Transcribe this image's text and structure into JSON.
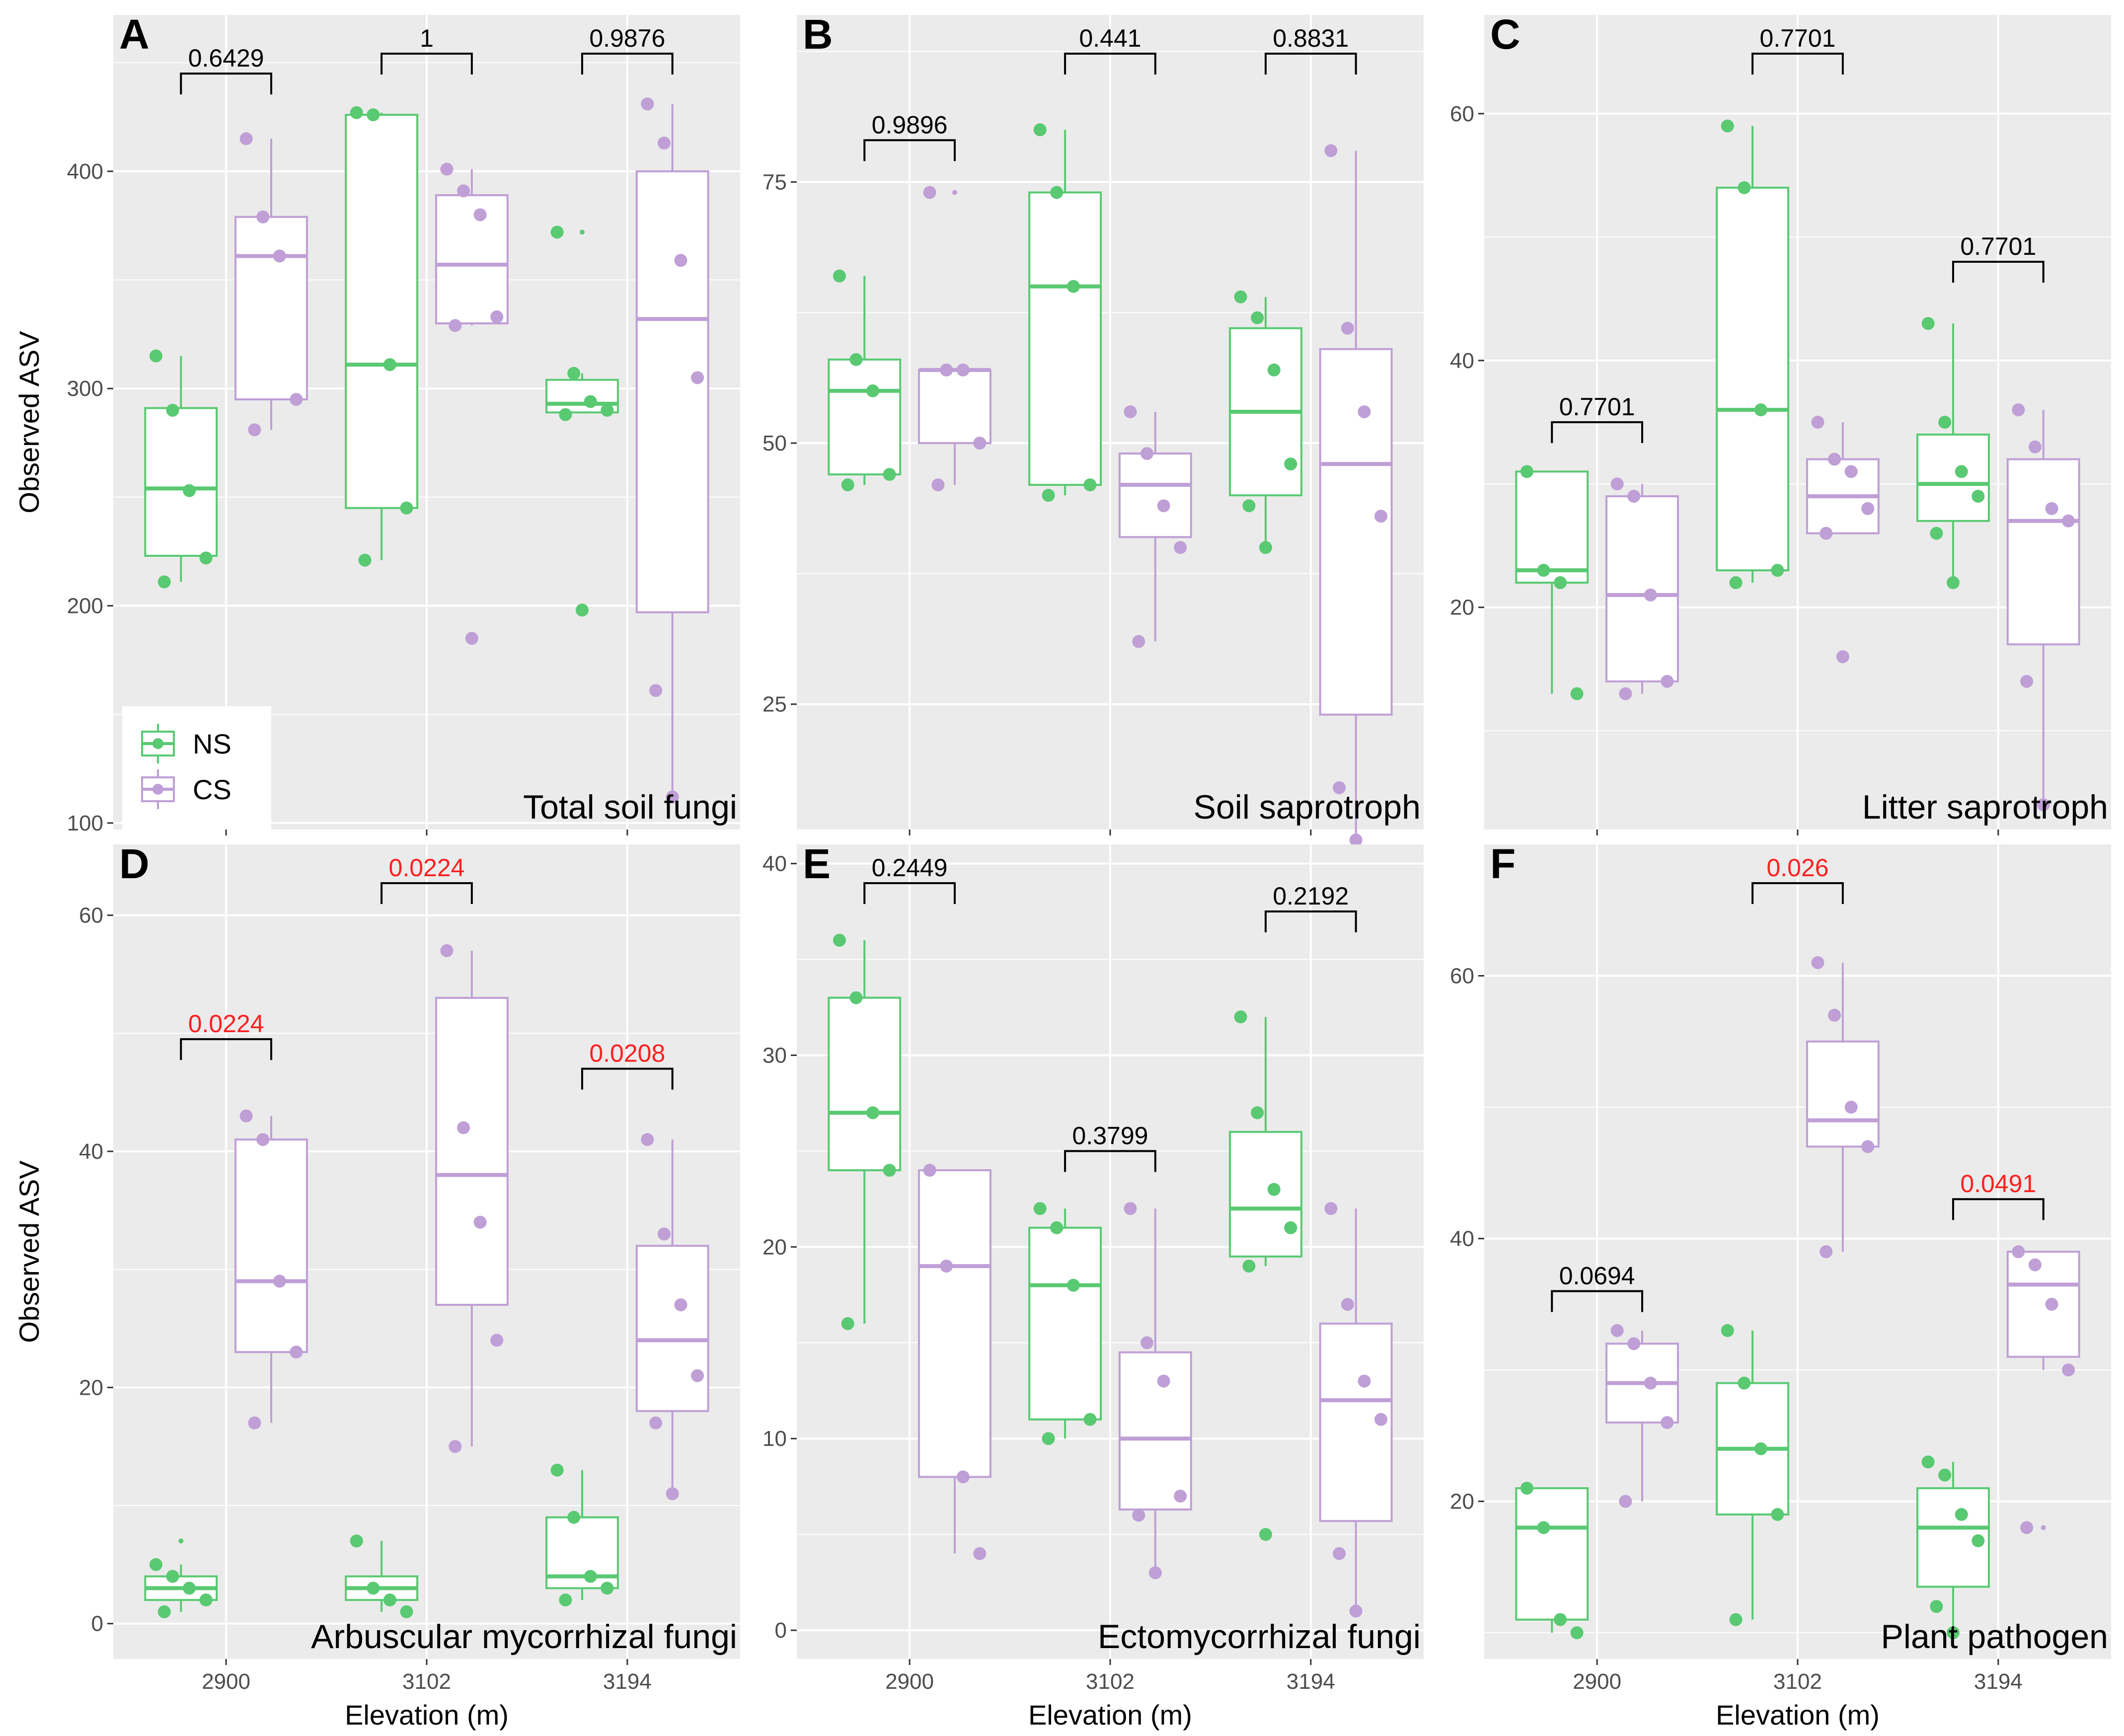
{
  "colors": {
    "NS": "#59C972",
    "CS": "#BF9FD6",
    "sig": "#FF2020",
    "nonsig": "#000000",
    "panel_bg": "#EBEBEB",
    "grid": "#FFFFFF"
  },
  "legend": {
    "items": [
      {
        "group": "NS",
        "label": "NS"
      },
      {
        "group": "CS",
        "label": "CS"
      }
    ],
    "placement": "bottom-left of panel A"
  },
  "chart_data": [
    {
      "type": "box",
      "letter": "A",
      "title": "Total soil fungi",
      "xlabel": "",
      "ylabel": "Observed ASV",
      "ylim": [
        97,
        472
      ],
      "yticks": [
        100,
        200,
        300,
        400
      ],
      "categories": [
        "2900",
        "3102",
        "3194"
      ],
      "show_xticklabels": false,
      "series": [
        {
          "name": "NS",
          "boxes": [
            {
              "min": 211,
              "q1": 223,
              "median": 254,
              "q3": 291,
              "max": 315,
              "points": [
                315,
                290,
                253,
                222,
                211
              ]
            },
            {
              "min": 221,
              "q1": 245,
              "median": 311,
              "q3": 426,
              "max": 427,
              "points": [
                427,
                426,
                311,
                245,
                221
              ]
            },
            {
              "min": 289,
              "q1": 289,
              "median": 293,
              "q3": 304,
              "max": 307,
              "outliers": [
                372,
                198
              ],
              "points": [
                372,
                307,
                294,
                290,
                288,
                198
              ]
            }
          ]
        },
        {
          "name": "CS",
          "boxes": [
            {
              "min": 281,
              "q1": 295,
              "median": 361,
              "q3": 379,
              "max": 415,
              "points": [
                415,
                379,
                361,
                295,
                281
              ]
            },
            {
              "min": 329,
              "q1": 330,
              "median": 357,
              "q3": 389,
              "max": 401,
              "outliers": [
                185
              ],
              "points": [
                401,
                391,
                380,
                333,
                329,
                185
              ]
            },
            {
              "min": 112,
              "q1": 197,
              "median": 332,
              "q3": 400,
              "max": 431,
              "points": [
                431,
                413,
                359,
                305,
                161,
                112
              ]
            }
          ]
        }
      ],
      "comparisons": [
        {
          "category": "2900",
          "label": "0.6429",
          "significant": false,
          "y": 445
        },
        {
          "category": "3102",
          "label": "1",
          "significant": false,
          "y": 460
        },
        {
          "category": "3194",
          "label": "0.9876",
          "significant": false,
          "y": 479
        }
      ]
    },
    {
      "type": "box",
      "letter": "B",
      "title": "Soil saprotroph",
      "xlabel": "",
      "ylabel": "",
      "ylim": [
        13,
        91
      ],
      "yticks": [
        25,
        50,
        75
      ],
      "categories": [
        "2900",
        "3102",
        "3194"
      ],
      "show_xticklabels": false,
      "series": [
        {
          "name": "NS",
          "boxes": [
            {
              "min": 46,
              "q1": 47,
              "median": 55,
              "q3": 58,
              "max": 66,
              "points": [
                66,
                58,
                55,
                47,
                46
              ]
            },
            {
              "min": 45,
              "q1": 46,
              "median": 65,
              "q3": 74,
              "max": 80,
              "points": [
                80,
                74,
                65,
                46,
                45
              ]
            },
            {
              "min": 40,
              "q1": 45,
              "median": 53,
              "q3": 61,
              "max": 64,
              "points": [
                64,
                62,
                57,
                48,
                44,
                40
              ]
            }
          ]
        },
        {
          "name": "CS",
          "boxes": [
            {
              "min": 46,
              "q1": 50,
              "median": 57,
              "q3": 57,
              "max": 57,
              "outliers": [
                74
              ],
              "points": [
                74,
                57,
                57,
                50,
                46
              ]
            },
            {
              "min": 31,
              "q1": 41,
              "median": 46,
              "q3": 49,
              "max": 53,
              "points": [
                53,
                49,
                44,
                40,
                31
              ]
            },
            {
              "min": 12,
              "q1": 24,
              "median": 48,
              "q3": 59,
              "max": 78,
              "points": [
                78,
                61,
                53,
                43,
                17,
                12
              ]
            }
          ]
        }
      ],
      "comparisons": [
        {
          "category": "2900",
          "label": "0.9896",
          "significant": false,
          "y": 79
        },
        {
          "category": "3102",
          "label": "0.441",
          "significant": false,
          "y": 88
        },
        {
          "category": "3194",
          "label": "0.8831",
          "significant": false,
          "y": 88
        }
      ]
    },
    {
      "type": "box",
      "letter": "C",
      "title": "Litter saprotroph",
      "xlabel": "",
      "ylabel": "",
      "ylim": [
        2,
        68
      ],
      "yticks": [
        20,
        40,
        60
      ],
      "categories": [
        "2900",
        "3102",
        "3194"
      ],
      "show_xticklabels": false,
      "series": [
        {
          "name": "NS",
          "boxes": [
            {
              "min": 13,
              "q1": 22,
              "median": 23,
              "q3": 31,
              "max": 31,
              "points": [
                31,
                23,
                22,
                13
              ]
            },
            {
              "min": 22,
              "q1": 23,
              "median": 36,
              "q3": 54,
              "max": 59,
              "points": [
                59,
                54,
                36,
                23,
                22
              ]
            },
            {
              "min": 22,
              "q1": 27,
              "median": 30,
              "q3": 34,
              "max": 43,
              "points": [
                43,
                35,
                31,
                29,
                26,
                22
              ]
            }
          ]
        },
        {
          "name": "CS",
          "boxes": [
            {
              "min": 13,
              "q1": 14,
              "median": 21,
              "q3": 29,
              "max": 30,
              "points": [
                30,
                29,
                21,
                14,
                13
              ]
            },
            {
              "min": 26,
              "q1": 26,
              "median": 29,
              "q3": 32,
              "max": 35,
              "outliers": [
                16
              ],
              "points": [
                35,
                32,
                31,
                28,
                26,
                16
              ]
            },
            {
              "min": 4,
              "q1": 17,
              "median": 27,
              "q3": 32,
              "max": 36,
              "points": [
                36,
                33,
                28,
                27,
                14,
                4
              ]
            }
          ]
        }
      ],
      "comparisons": [
        {
          "category": "2900",
          "label": "0.7701",
          "significant": false,
          "y": 35
        },
        {
          "category": "3102",
          "label": "0.7701",
          "significant": false,
          "y": 69
        },
        {
          "category": "3194",
          "label": "0.7701",
          "significant": false,
          "y": 48
        }
      ]
    },
    {
      "type": "box",
      "letter": "D",
      "title": "Arbuscular mycorrhizal fungi",
      "xlabel": "Elevation (m)",
      "ylabel": "Observed ASV",
      "ylim": [
        -3,
        66
      ],
      "yticks": [
        0,
        20,
        40,
        60
      ],
      "categories": [
        "2900",
        "3102",
        "3194"
      ],
      "show_xticklabels": true,
      "series": [
        {
          "name": "NS",
          "boxes": [
            {
              "min": 1,
              "q1": 2,
              "median": 3,
              "q3": 4,
              "max": 5,
              "outliers": [
                7
              ],
              "points": [
                5,
                4,
                3,
                2,
                1
              ]
            },
            {
              "min": 1,
              "q1": 2,
              "median": 3,
              "q3": 4,
              "max": 7,
              "points": [
                7,
                3,
                2,
                1
              ]
            },
            {
              "min": 2,
              "q1": 3,
              "median": 4,
              "q3": 9,
              "max": 13,
              "points": [
                13,
                9,
                4,
                3,
                2
              ]
            }
          ]
        },
        {
          "name": "CS",
          "boxes": [
            {
              "min": 17,
              "q1": 23,
              "median": 29,
              "q3": 41,
              "max": 43,
              "points": [
                43,
                41,
                29,
                23,
                17
              ]
            },
            {
              "min": 15,
              "q1": 27,
              "median": 38,
              "q3": 53,
              "max": 57,
              "points": [
                57,
                42,
                34,
                24,
                15
              ]
            },
            {
              "min": 11,
              "q1": 18,
              "median": 24,
              "q3": 32,
              "max": 41,
              "points": [
                41,
                33,
                27,
                21,
                17,
                11
              ]
            }
          ]
        }
      ],
      "comparisons": [
        {
          "category": "2900",
          "label": "0.0224",
          "significant": true,
          "y": 49.5
        },
        {
          "category": "3102",
          "label": "0.0224",
          "significant": true,
          "y": 65.5
        },
        {
          "category": "3194",
          "label": "0.0208",
          "significant": true,
          "y": 47
        }
      ]
    },
    {
      "type": "box",
      "letter": "E",
      "title": "Ectomycorrhizal fungi",
      "xlabel": "Elevation (m)",
      "ylabel": "",
      "ylim": [
        -1.5,
        41
      ],
      "yticks": [
        0,
        10,
        20,
        30,
        40
      ],
      "categories": [
        "2900",
        "3102",
        "3194"
      ],
      "show_xticklabels": true,
      "series": [
        {
          "name": "NS",
          "boxes": [
            {
              "min": 16,
              "q1": 24,
              "median": 27,
              "q3": 33,
              "max": 36,
              "points": [
                36,
                33,
                27,
                24,
                16
              ]
            },
            {
              "min": 10,
              "q1": 11,
              "median": 18,
              "q3": 21,
              "max": 22,
              "points": [
                22,
                21,
                18,
                11,
                10
              ]
            },
            {
              "min": 19,
              "q1": 19.5,
              "median": 22,
              "q3": 26,
              "max": 32,
              "outliers": [
                5
              ],
              "points": [
                32,
                27,
                23,
                21,
                19,
                5
              ]
            }
          ]
        },
        {
          "name": "CS",
          "boxes": [
            {
              "min": 4,
              "q1": 8,
              "median": 19,
              "q3": 24,
              "max": 24,
              "points": [
                24,
                19,
                8,
                4
              ]
            },
            {
              "min": 3,
              "q1": 6.3,
              "median": 10,
              "q3": 14.5,
              "max": 22,
              "points": [
                22,
                15,
                13,
                7,
                6,
                3
              ]
            },
            {
              "min": 1,
              "q1": 5.7,
              "median": 12,
              "q3": 16,
              "max": 22,
              "points": [
                22,
                17,
                13,
                11,
                4,
                1
              ]
            }
          ]
        }
      ],
      "comparisons": [
        {
          "category": "2900",
          "label": "0.2449",
          "significant": false,
          "y": 40
        },
        {
          "category": "3102",
          "label": "0.3799",
          "significant": false,
          "y": 25
        },
        {
          "category": "3194",
          "label": "0.2192",
          "significant": false,
          "y": 37.5
        }
      ]
    },
    {
      "type": "box",
      "letter": "F",
      "title": "Plant pathogen",
      "xlabel": "Elevation (m)",
      "ylabel": "",
      "ylim": [
        8,
        70
      ],
      "yticks": [
        20,
        40,
        60
      ],
      "categories": [
        "2900",
        "3102",
        "3194"
      ],
      "show_xticklabels": true,
      "series": [
        {
          "name": "NS",
          "boxes": [
            {
              "min": 10,
              "q1": 11,
              "median": 18,
              "q3": 21,
              "max": 21,
              "points": [
                21,
                18,
                11,
                10
              ]
            },
            {
              "min": 11,
              "q1": 19,
              "median": 24,
              "q3": 29,
              "max": 33,
              "points": [
                33,
                29,
                24,
                19,
                11
              ]
            },
            {
              "min": 10,
              "q1": 13.5,
              "median": 18,
              "q3": 21,
              "max": 23,
              "points": [
                23,
                22,
                19,
                17,
                12,
                10
              ]
            }
          ]
        },
        {
          "name": "CS",
          "boxes": [
            {
              "min": 20,
              "q1": 26,
              "median": 29,
              "q3": 32,
              "max": 33,
              "points": [
                33,
                32,
                29,
                26,
                20
              ]
            },
            {
              "min": 39,
              "q1": 47,
              "median": 49,
              "q3": 55,
              "max": 61,
              "points": [
                61,
                57,
                50,
                47,
                39
              ]
            },
            {
              "min": 30,
              "q1": 31,
              "median": 36.5,
              "q3": 39,
              "max": 39,
              "outliers": [
                18
              ],
              "points": [
                39,
                38,
                35,
                30,
                18
              ]
            }
          ]
        }
      ],
      "comparisons": [
        {
          "category": "2900",
          "label": "0.0694",
          "significant": false,
          "y": 36
        },
        {
          "category": "3102",
          "label": "0.026",
          "significant": true,
          "y": 69
        },
        {
          "category": "3194",
          "label": "0.0491",
          "significant": true,
          "y": 43
        }
      ]
    }
  ]
}
